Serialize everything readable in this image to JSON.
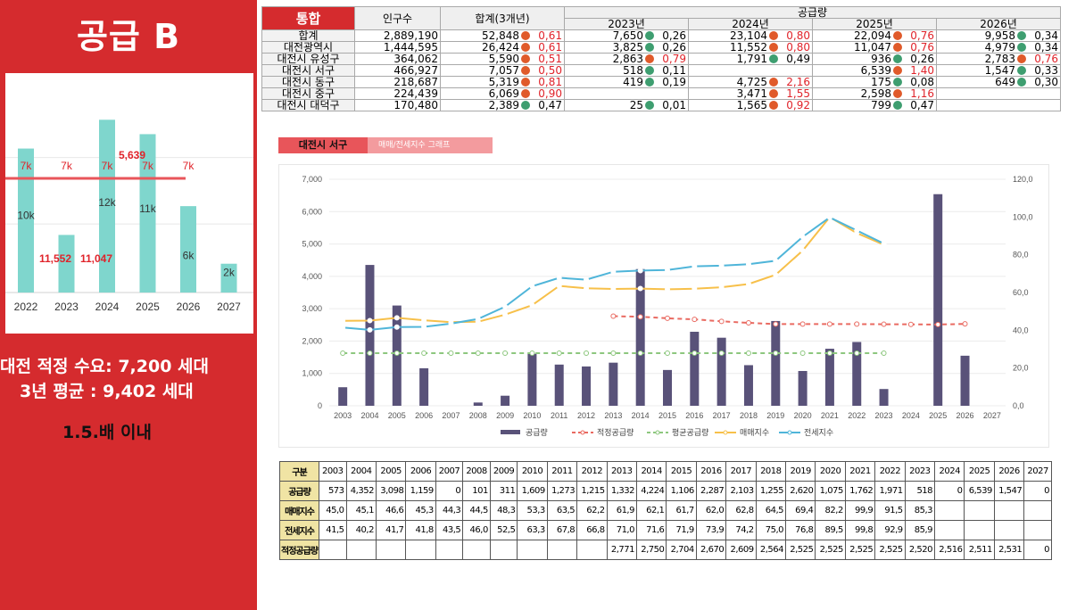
{
  "left_panel": {
    "title": "공급 B",
    "line1": "대전 적정 수요: 7,200 세대",
    "line2": "3년 평균 : 9,402 세대",
    "line3": "1.5.배 이내"
  },
  "colors": {
    "brand_red": "#d52b2e",
    "bar_teal": "#7fd6cd",
    "bar_purple": "#595279",
    "line_red": "#e96a61",
    "line_green": "#8dc77e",
    "line_yellow": "#f7c04a",
    "line_blue": "#4fb5d9",
    "dot_red": "#e05a2a",
    "dot_green": "#3e9e70"
  },
  "top_table": {
    "corner": "통합",
    "pop_header": "인구수",
    "supply_header": "공급량",
    "sum_header": "합계(3개년)",
    "years": [
      "2023년",
      "2024년",
      "2025년",
      "2026년"
    ],
    "rows": [
      {
        "name": "합계",
        "pop": "2,889,190",
        "sum": "52,848",
        "sum_r": "0,61",
        "sum_c": "red",
        "cells": [
          [
            "7,650",
            "0,26",
            "green"
          ],
          [
            "23,104",
            "0,80",
            "red"
          ],
          [
            "22,094",
            "0,76",
            "red"
          ],
          [
            "9,958",
            "0,34",
            "green"
          ]
        ]
      },
      {
        "name": "대전광역시",
        "pop": "1,444,595",
        "sum": "26,424",
        "sum_r": "0,61",
        "sum_c": "red",
        "cells": [
          [
            "3,825",
            "0,26",
            "green"
          ],
          [
            "11,552",
            "0,80",
            "red"
          ],
          [
            "11,047",
            "0,76",
            "red"
          ],
          [
            "4,979",
            "0,34",
            "green"
          ]
        ]
      },
      {
        "name": "대전시 유성구",
        "pop": "364,062",
        "sum": "5,590",
        "sum_r": "0,51",
        "sum_c": "red",
        "cells": [
          [
            "2,863",
            "0,79",
            "red"
          ],
          [
            "1,791",
            "0,49",
            "green"
          ],
          [
            "936",
            "0,26",
            "green"
          ],
          [
            "2,783",
            "0,76",
            "red"
          ]
        ]
      },
      {
        "name": "대전시 서구",
        "pop": "466,927",
        "sum": "7,057",
        "sum_r": "0,50",
        "sum_c": "red",
        "cells": [
          [
            "518",
            "0,11",
            "green"
          ],
          [
            "",
            "",
            ""
          ],
          [
            "6,539",
            "1,40",
            "red"
          ],
          [
            "1,547",
            "0,33",
            "green"
          ]
        ]
      },
      {
        "name": "대전시 동구",
        "pop": "218,687",
        "sum": "5,319",
        "sum_r": "0,81",
        "sum_c": "red",
        "cells": [
          [
            "419",
            "0,19",
            "green"
          ],
          [
            "4,725",
            "2,16",
            "red"
          ],
          [
            "175",
            "0,08",
            "green"
          ],
          [
            "649",
            "0,30",
            "green"
          ]
        ]
      },
      {
        "name": "대전시 중구",
        "pop": "224,439",
        "sum": "6,069",
        "sum_r": "0,90",
        "sum_c": "red",
        "cells": [
          [
            "",
            "",
            ""
          ],
          [
            "3,471",
            "1,55",
            "red"
          ],
          [
            "2,598",
            "1,16",
            "red"
          ],
          [
            "",
            "",
            ""
          ]
        ]
      },
      {
        "name": "대전시 대덕구",
        "pop": "170,480",
        "sum": "2,389",
        "sum_r": "0,47",
        "sum_c": "green",
        "cells": [
          [
            "25",
            "0,01",
            "green"
          ],
          [
            "1,565",
            "0,92",
            "red"
          ],
          [
            "799",
            "0,47",
            "green"
          ],
          [
            "",
            "",
            ""
          ]
        ]
      }
    ]
  },
  "chart_label": {
    "region": "대전시 서구",
    "subtitle": "매매/전세지수 그래프"
  },
  "chart_data": [
    {
      "type": "bar",
      "categories": [
        "2022",
        "2023",
        "2024",
        "2025",
        "2026",
        "2027"
      ],
      "values": [
        10,
        4,
        12,
        11,
        6,
        2
      ],
      "data_labels": [
        "10k",
        "",
        "12k",
        "11k",
        "6k",
        "2k"
      ],
      "reference_line": {
        "value": 7,
        "labels": [
          "7k",
          "7k",
          "7k",
          "7k",
          "7k"
        ]
      },
      "annotations": [
        "11,552",
        "11,047",
        "5,639"
      ],
      "ylim": [
        0,
        14
      ]
    },
    {
      "type": "bar+line",
      "categories": [
        "2003",
        "2004",
        "2005",
        "2006",
        "2007",
        "2008",
        "2009",
        "2010",
        "2011",
        "2012",
        "2013",
        "2014",
        "2015",
        "2016",
        "2017",
        "2018",
        "2019",
        "2020",
        "2021",
        "2022",
        "2023",
        "2024",
        "2025",
        "2026",
        "2027"
      ],
      "series": [
        {
          "name": "공급량",
          "axis": "left",
          "kind": "bar",
          "values": [
            573,
            4352,
            3098,
            1159,
            0,
            101,
            311,
            1609,
            1273,
            1215,
            1332,
            4224,
            1106,
            2287,
            2103,
            1255,
            2620,
            1075,
            1762,
            1971,
            518,
            0,
            6539,
            1547,
            0
          ]
        },
        {
          "name": "적정공급량",
          "axis": "left",
          "kind": "dashed",
          "values": [
            null,
            null,
            null,
            null,
            null,
            null,
            null,
            null,
            null,
            null,
            2771,
            2750,
            2704,
            2670,
            2609,
            2564,
            2525,
            2525,
            2525,
            2525,
            2520,
            2516,
            2511,
            2531,
            null
          ]
        },
        {
          "name": "평균공급량",
          "axis": "left",
          "kind": "dashed",
          "values": [
            1627,
            1627,
            1627,
            1627,
            1627,
            1627,
            1627,
            1627,
            1627,
            1627,
            1627,
            1627,
            1627,
            1627,
            1627,
            1627,
            1627,
            1627,
            1627,
            1627,
            1627,
            null,
            null,
            null,
            null
          ]
        },
        {
          "name": "매매지수",
          "axis": "right",
          "kind": "line",
          "values": [
            45.0,
            45.1,
            46.6,
            45.3,
            44.3,
            44.5,
            48.3,
            53.3,
            63.5,
            62.2,
            61.9,
            62.1,
            61.7,
            62.0,
            62.8,
            64.5,
            69.4,
            82.2,
            99.9,
            91.5,
            85.3,
            null,
            null,
            null,
            null
          ]
        },
        {
          "name": "전세지수",
          "axis": "right",
          "kind": "line",
          "values": [
            41.5,
            40.2,
            41.7,
            41.8,
            43.5,
            46.0,
            52.5,
            63.3,
            67.8,
            66.8,
            71.0,
            71.6,
            71.9,
            73.9,
            74.2,
            75.0,
            76.8,
            89.5,
            99.8,
            92.9,
            85.9,
            null,
            null,
            null,
            null
          ]
        }
      ],
      "y_left": {
        "min": 0,
        "max": 7000,
        "ticks": [
          "0",
          "1,000",
          "2,000",
          "3,000",
          "4,000",
          "5,000",
          "6,000",
          "7,000"
        ]
      },
      "y_right": {
        "min": 0,
        "max": 120,
        "ticks": [
          "0,0",
          "20,0",
          "40,0",
          "60,0",
          "80,0",
          "100,0",
          "120,0"
        ]
      },
      "legend_position": "bottom"
    }
  ],
  "bottom_table": {
    "header": "구분",
    "years": [
      "2003",
      "2004",
      "2005",
      "2006",
      "2007",
      "2008",
      "2009",
      "2010",
      "2011",
      "2012",
      "2013",
      "2014",
      "2015",
      "2016",
      "2017",
      "2018",
      "2019",
      "2020",
      "2021",
      "2022",
      "2023",
      "2024",
      "2025",
      "2026",
      "2027"
    ],
    "rows": [
      {
        "label": "공급량",
        "values": [
          "573",
          "4,352",
          "3,098",
          "1,159",
          "0",
          "101",
          "311",
          "1,609",
          "1,273",
          "1,215",
          "1,332",
          "4,224",
          "1,106",
          "2,287",
          "2,103",
          "1,255",
          "2,620",
          "1,075",
          "1,762",
          "1,971",
          "518",
          "0",
          "6,539",
          "1,547",
          "0"
        ]
      },
      {
        "label": "매매지수",
        "values": [
          "45,0",
          "45,1",
          "46,6",
          "45,3",
          "44,3",
          "44,5",
          "48,3",
          "53,3",
          "63,5",
          "62,2",
          "61,9",
          "62,1",
          "61,7",
          "62,0",
          "62,8",
          "64,5",
          "69,4",
          "82,2",
          "99,9",
          "91,5",
          "85,3",
          "",
          "",
          "",
          ""
        ]
      },
      {
        "label": "전세지수",
        "values": [
          "41,5",
          "40,2",
          "41,7",
          "41,8",
          "43,5",
          "46,0",
          "52,5",
          "63,3",
          "67,8",
          "66,8",
          "71,0",
          "71,6",
          "71,9",
          "73,9",
          "74,2",
          "75,0",
          "76,8",
          "89,5",
          "99,8",
          "92,9",
          "85,9",
          "",
          "",
          "",
          ""
        ]
      },
      {
        "label": "적정공급량",
        "values": [
          "",
          "",
          "",
          "",
          "",
          "",
          "",
          "",
          "",
          "",
          "2,771",
          "2,750",
          "2,704",
          "2,670",
          "2,609",
          "2,564",
          "2,525",
          "2,525",
          "2,525",
          "2,525",
          "2,520",
          "2,516",
          "2,511",
          "2,531",
          "0"
        ]
      }
    ]
  }
}
